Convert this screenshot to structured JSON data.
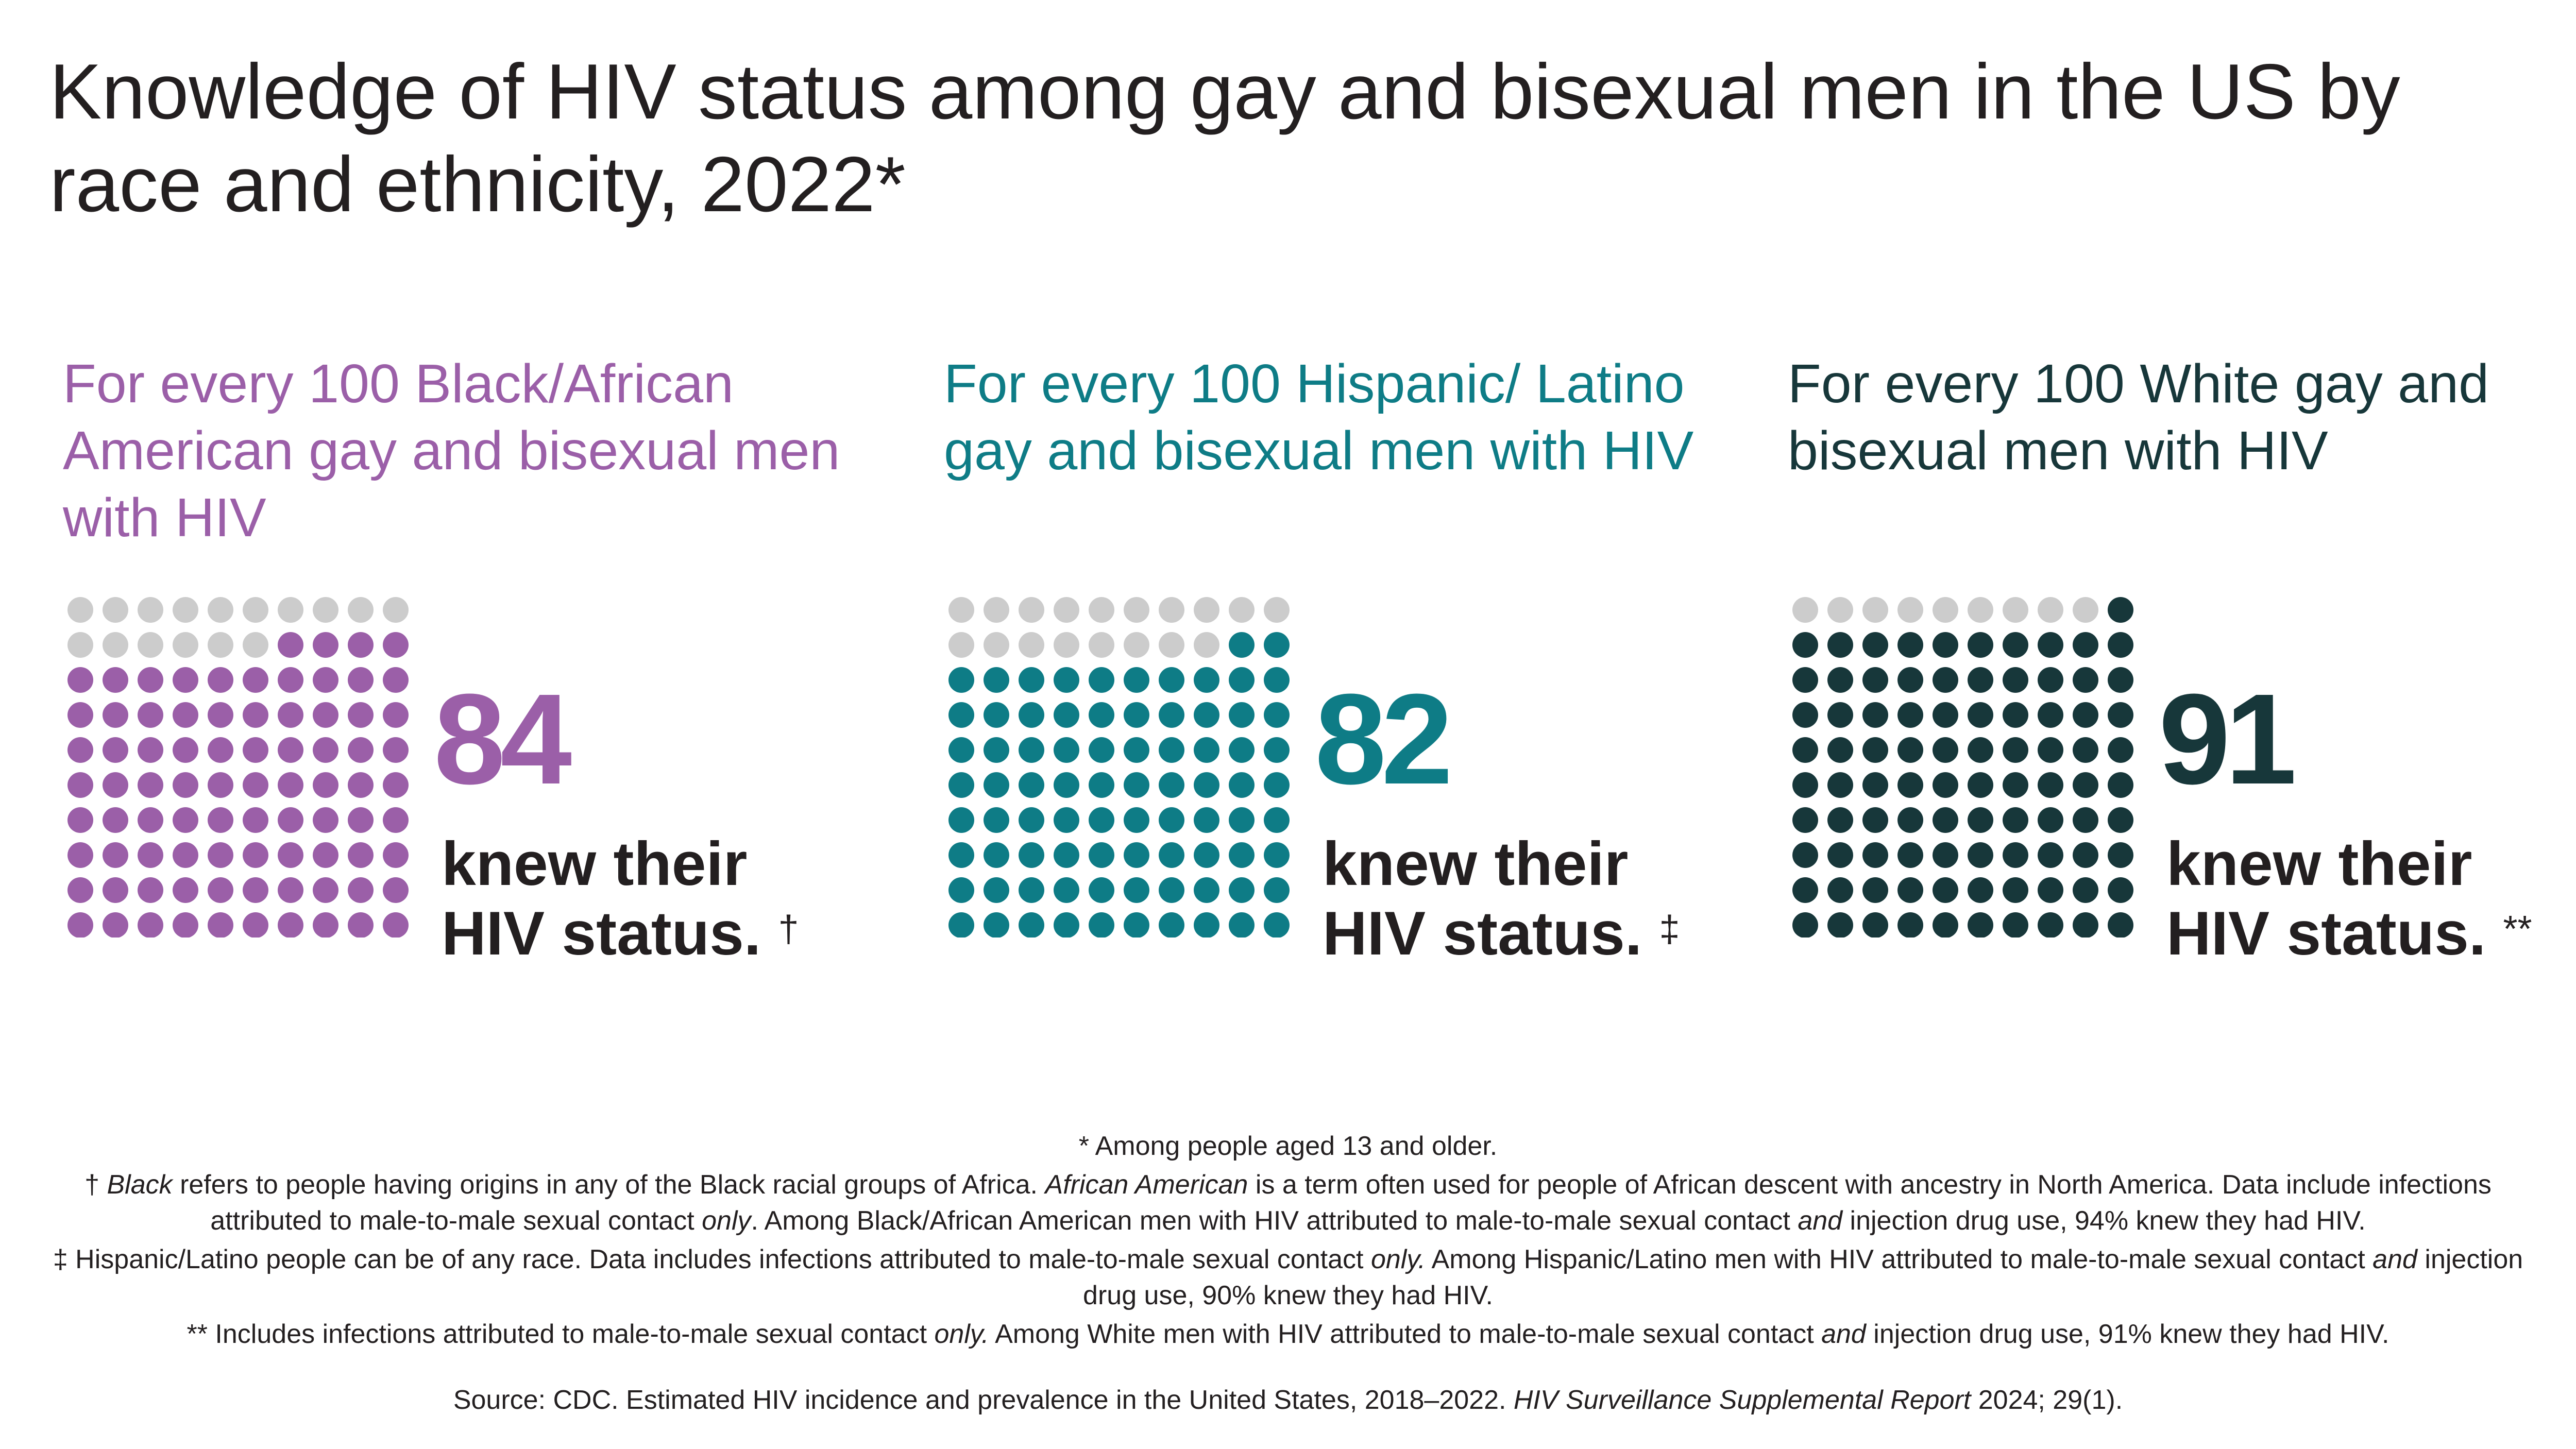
{
  "title": "Knowledge of HIV status among gay and bisexual men in the US by race and ethnicity, 2022*",
  "chart_data": {
    "type": "waffle",
    "total_per_panel": 100,
    "panels": [
      {
        "heading": "For every 100 Black/African American gay and bisexual men with HIV",
        "value": 84,
        "value_label": "84",
        "caption_line1": "knew their",
        "caption_line2": "HIV status.",
        "footnote_mark": "†",
        "color": "#9b5fa8"
      },
      {
        "heading": "For every 100 Hispanic/ Latino gay and bisexual men with HIV",
        "value": 82,
        "value_label": "82",
        "caption_line1": "knew their",
        "caption_line2": "HIV status.",
        "footnote_mark": "‡",
        "color": "#0e7c86"
      },
      {
        "heading": "For every 100 White gay and bisexual men with HIV",
        "value": 91,
        "value_label": "91",
        "caption_line1": "knew their",
        "caption_line2": "HIV status.",
        "footnote_mark": "**",
        "color": "#17373a"
      }
    ],
    "remainder_color": "#cccccc"
  },
  "footnotes": {
    "asterisk": "* Among people aged 13 and older.",
    "dagger": {
      "mark": "† ",
      "t1": "Black",
      "t2": " refers to people having origins in any of the Black racial groups of Africa. ",
      "t3": "African American",
      "t4": " is a term often used for people of African descent with ancestry in North America. Data include infections attributed to male-to-male sexual contact ",
      "t5": "only",
      "t6": ". Among Black/African American men with HIV attributed to male-to-male sexual contact ",
      "t7": "and",
      "t8": " injection drug use, 94% knew they had HIV."
    },
    "double_dagger": {
      "t1": "‡ Hispanic/Latino people can be of any race. Data includes infections attributed to male-to-male sexual contact ",
      "t2": "only.",
      "t3": " Among Hispanic/Latino men with HIV attributed to male-to-male sexual contact ",
      "t4": "and",
      "t5": " injection drug use, 90% knew they had HIV."
    },
    "double_asterisk": {
      "t1": "** Includes infections attributed to male-to-male sexual contact ",
      "t2": "only.",
      "t3": " Among White men with HIV attributed to male-to-male sexual contact ",
      "t4": "and",
      "t5": " injection drug use, 91% knew they had HIV."
    }
  },
  "source": {
    "t1": "Source: CDC. Estimated HIV incidence and prevalence in the United States, 2018–2022. ",
    "t2": "HIV Surveillance Supplemental Report",
    "t3": " 2024; 29(1)."
  }
}
